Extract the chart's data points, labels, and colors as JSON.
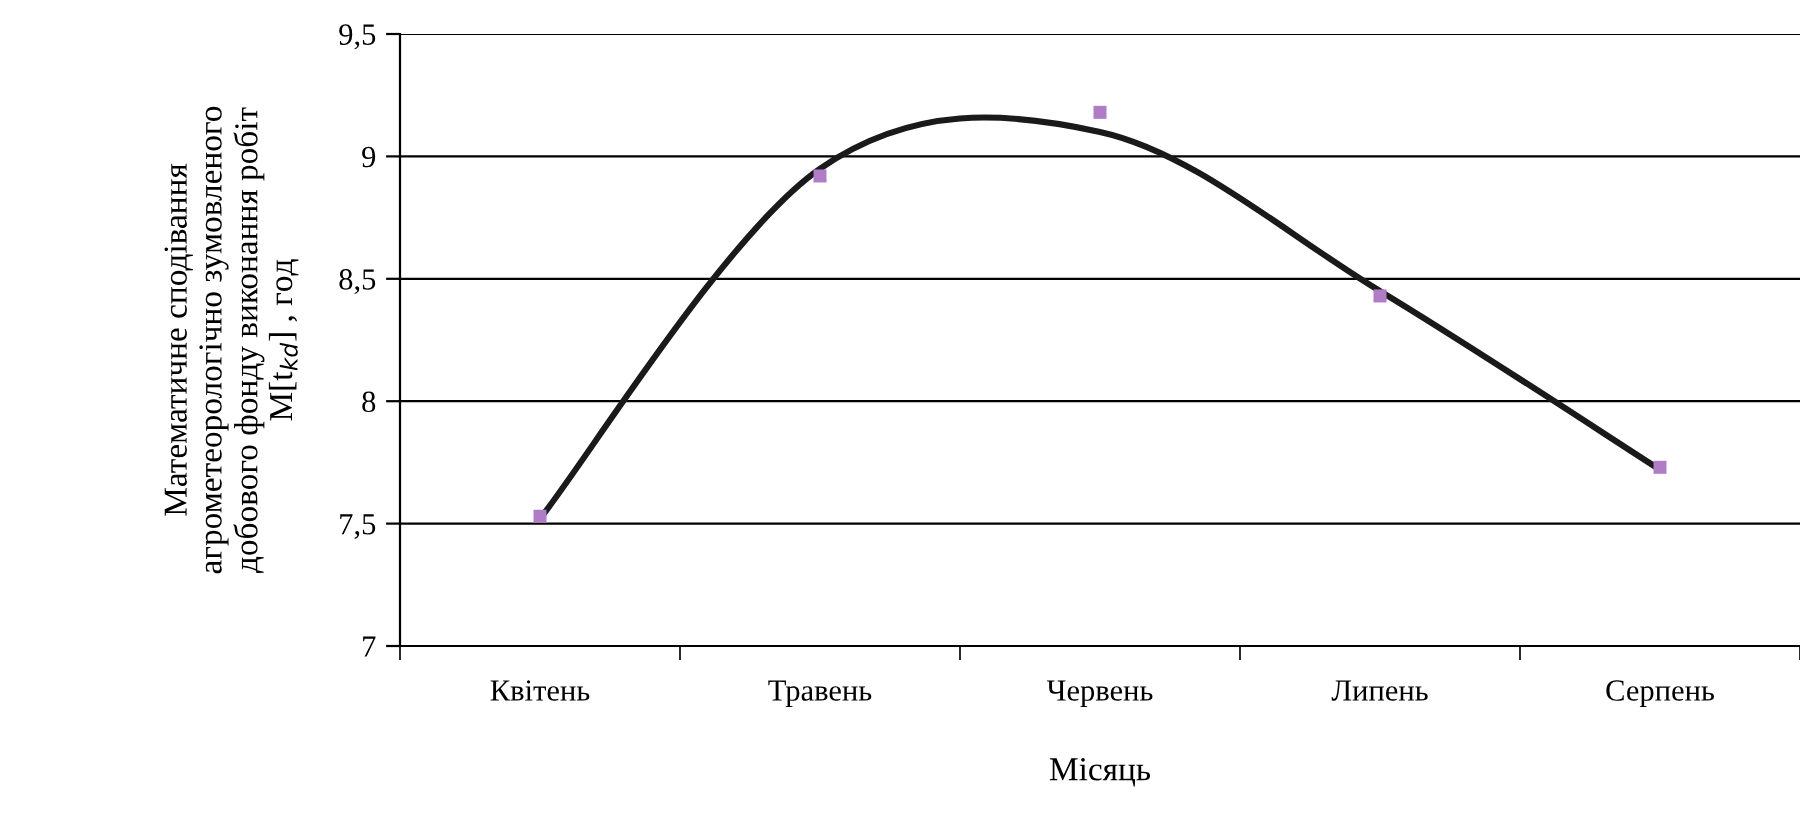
{
  "chart_data": {
    "type": "scatter",
    "xlabel": "Місяць",
    "ylabel": "Математичне сподівання\nагрометеорологічно зумовленого\nдобового фонду виконання робіт\nM[t$_{kd}$] , год",
    "categories": [
      "Квітень",
      "Травень",
      "Червень",
      "Липень",
      "Серпень"
    ],
    "series": [
      {
        "color": "#b07cc6",
        "marker": "square",
        "values": [
          7.53,
          8.92,
          9.18,
          8.43,
          7.73
        ]
      },
      {
        "type": "line",
        "color": "#1a1a1a",
        "marker": "none",
        "line_style": "solid",
        "values": [
          7.52,
          8.95,
          9.1,
          8.45,
          7.72
        ]
      }
    ],
    "ylim": [
      7,
      9.5
    ],
    "yticks": [
      7,
      {
        "value": 7.5,
        "label": "7,5"
      },
      8,
      {
        "value": 8.5,
        "label": "8,5"
      },
      9,
      {
        "value": 9.5,
        "label": "9,5"
      }
    ],
    "grid": "y",
    "legend": false
  }
}
